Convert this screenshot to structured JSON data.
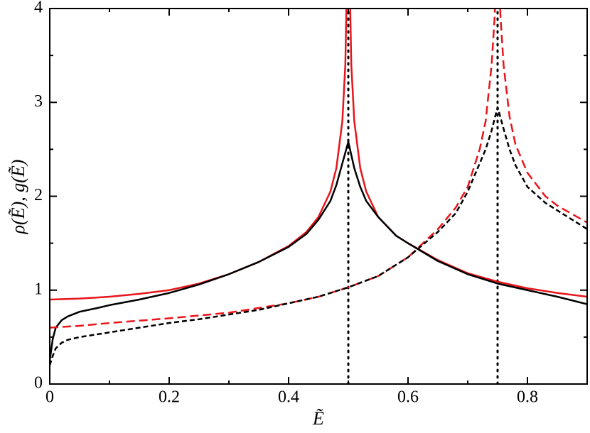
{
  "chart_data": {
    "type": "line",
    "x_label": "Ẽ",
    "y_label": "ρ(Ẽ), g(Ẽ)",
    "xlim": [
      0,
      0.9
    ],
    "ylim": [
      0,
      4
    ],
    "xticks": [
      0,
      0.2,
      0.4,
      0.6,
      0.8
    ],
    "yticks": [
      0,
      1,
      2,
      3,
      4
    ],
    "xminorticks": [
      0.1,
      0.3,
      0.5,
      0.7
    ],
    "yminorticks": [
      0.5,
      1.5,
      2.5,
      3.5
    ],
    "vlines": [
      0.5,
      0.75
    ],
    "series": [
      {
        "color": "#e8151b",
        "dash": "solid",
        "x": [
          0,
          0.05,
          0.1,
          0.15,
          0.2,
          0.25,
          0.3,
          0.35,
          0.4,
          0.43,
          0.45,
          0.47,
          0.48,
          0.49,
          0.495,
          0.498,
          0.5,
          0.502,
          0.505,
          0.51,
          0.52,
          0.53,
          0.55,
          0.58,
          0.6,
          0.65,
          0.7,
          0.75,
          0.8,
          0.85,
          0.9
        ],
        "values": [
          0.9,
          0.91,
          0.93,
          0.96,
          1.0,
          1.07,
          1.17,
          1.3,
          1.47,
          1.62,
          1.78,
          2.05,
          2.3,
          2.8,
          3.4,
          4.4,
          null,
          4.4,
          3.4,
          2.8,
          2.3,
          2.05,
          1.78,
          1.58,
          1.5,
          1.32,
          1.18,
          1.09,
          1.02,
          0.97,
          0.93
        ]
      },
      {
        "color": "#000000",
        "dash": "solid",
        "x": [
          0,
          0.005,
          0.01,
          0.02,
          0.03,
          0.05,
          0.08,
          0.1,
          0.15,
          0.2,
          0.25,
          0.3,
          0.35,
          0.4,
          0.43,
          0.45,
          0.47,
          0.48,
          0.49,
          0.5,
          0.51,
          0.52,
          0.53,
          0.55,
          0.58,
          0.6,
          0.65,
          0.7,
          0.75,
          0.8,
          0.85,
          0.9
        ],
        "values": [
          0.25,
          0.48,
          0.6,
          0.68,
          0.72,
          0.77,
          0.81,
          0.84,
          0.9,
          0.97,
          1.06,
          1.17,
          1.3,
          1.46,
          1.6,
          1.75,
          1.95,
          2.12,
          2.35,
          2.58,
          2.3,
          2.1,
          1.95,
          1.78,
          1.58,
          1.5,
          1.31,
          1.17,
          1.07,
          1.0,
          0.93,
          0.85
        ]
      },
      {
        "color": "#e8151b",
        "dash": "dashed",
        "x": [
          0,
          0.05,
          0.1,
          0.2,
          0.3,
          0.4,
          0.45,
          0.5,
          0.55,
          0.6,
          0.65,
          0.68,
          0.7,
          0.72,
          0.73,
          0.74,
          0.745,
          0.748,
          0.75,
          0.752,
          0.755,
          0.76,
          0.77,
          0.78,
          0.8,
          0.83,
          0.85,
          0.9
        ],
        "values": [
          0.6,
          0.62,
          0.65,
          0.7,
          0.76,
          0.86,
          0.93,
          1.03,
          1.15,
          1.35,
          1.65,
          1.88,
          2.1,
          2.5,
          2.8,
          3.4,
          3.9,
          4.4,
          null,
          4.4,
          3.9,
          3.4,
          2.85,
          2.55,
          2.25,
          2.0,
          1.9,
          1.72
        ]
      },
      {
        "color": "#000000",
        "dash": "short-dashed",
        "x": [
          0,
          0.005,
          0.01,
          0.02,
          0.03,
          0.05,
          0.08,
          0.1,
          0.15,
          0.2,
          0.25,
          0.3,
          0.35,
          0.4,
          0.45,
          0.5,
          0.55,
          0.6,
          0.65,
          0.68,
          0.7,
          0.72,
          0.73,
          0.74,
          0.75,
          0.76,
          0.77,
          0.78,
          0.8,
          0.83,
          0.85,
          0.9
        ],
        "values": [
          0.2,
          0.3,
          0.38,
          0.44,
          0.47,
          0.5,
          0.53,
          0.55,
          0.6,
          0.65,
          0.69,
          0.74,
          0.79,
          0.86,
          0.93,
          1.03,
          1.15,
          1.35,
          1.62,
          1.82,
          2.05,
          2.35,
          2.5,
          2.7,
          2.95,
          2.72,
          2.5,
          2.33,
          2.1,
          1.93,
          1.85,
          1.65
        ]
      }
    ]
  }
}
